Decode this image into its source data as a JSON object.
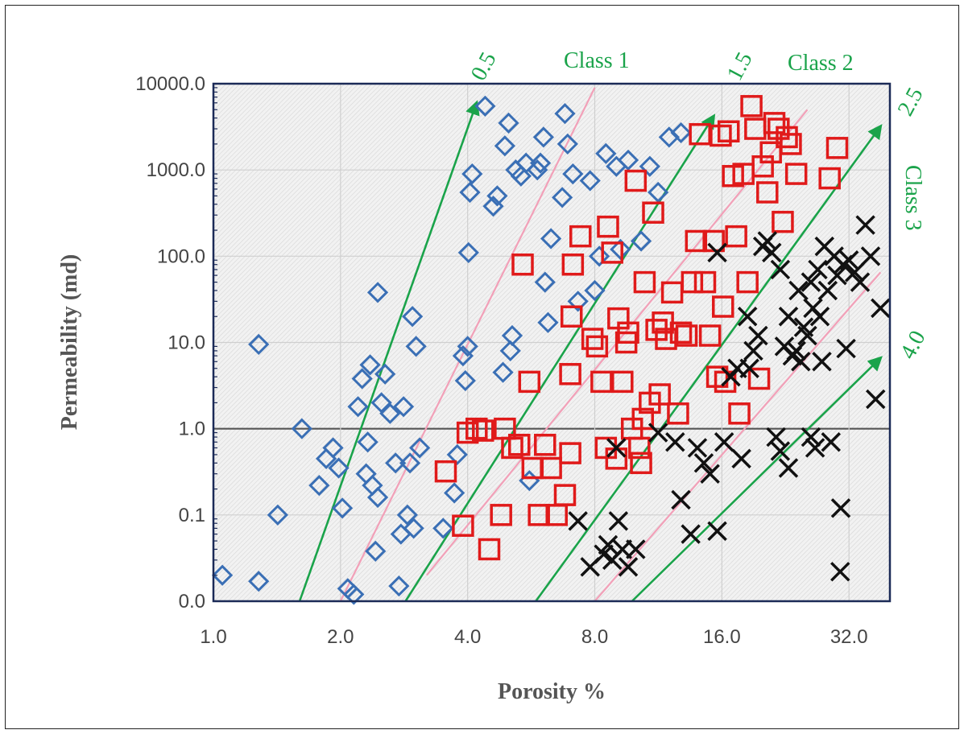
{
  "chart_data": {
    "type": "scatter",
    "xlabel": "Porosity %",
    "ylabel": "Permeability (md)",
    "x_scale": "log2",
    "y_scale": "log10",
    "xlim": [
      1.0,
      40.0
    ],
    "ylim": [
      0.01,
      10000.0
    ],
    "x_ticks": [
      1.0,
      2.0,
      4.0,
      8.0,
      16.0,
      32.0
    ],
    "x_tick_labels": [
      "1.0",
      "2.0",
      "4.0",
      "8.0",
      "16.0",
      "32.0"
    ],
    "y_ticks": [
      0.01,
      0.1,
      1.0,
      10.0,
      100.0,
      1000.0,
      10000.0
    ],
    "y_tick_labels": [
      "0.0",
      "0.1",
      "1.0",
      "10.0",
      "100.0",
      "1000.0",
      "10000.0"
    ],
    "grid": true,
    "reference_line_y": 1.0,
    "colors": {
      "diamond": "#3a6fb5",
      "square": "#e01a1a",
      "cross": "#111111",
      "green_line": "#1aa34a",
      "pink_line": "#f2a0b8"
    },
    "series": [
      {
        "marker": "diamond",
        "points": [
          [
            1.05,
            0.02
          ],
          [
            1.28,
            0.017
          ],
          [
            1.28,
            9.5
          ],
          [
            1.42,
            0.1
          ],
          [
            1.62,
            1.0
          ],
          [
            1.78,
            0.22
          ],
          [
            1.85,
            0.45
          ],
          [
            1.92,
            0.6
          ],
          [
            1.98,
            0.35
          ],
          [
            2.02,
            0.12
          ],
          [
            2.08,
            0.014
          ],
          [
            2.15,
            0.012
          ],
          [
            2.2,
            1.8
          ],
          [
            2.25,
            3.8
          ],
          [
            2.3,
            0.3
          ],
          [
            2.32,
            0.7
          ],
          [
            2.35,
            5.5
          ],
          [
            2.38,
            0.22
          ],
          [
            2.42,
            0.038
          ],
          [
            2.45,
            0.16
          ],
          [
            2.5,
            2.0
          ],
          [
            2.55,
            4.3
          ],
          [
            2.62,
            1.5
          ],
          [
            2.7,
            0.4
          ],
          [
            2.75,
            0.015
          ],
          [
            2.78,
            0.06
          ],
          [
            2.82,
            1.8
          ],
          [
            2.88,
            0.1
          ],
          [
            2.92,
            0.4
          ],
          [
            2.98,
            0.07
          ],
          [
            3.02,
            9.0
          ],
          [
            2.96,
            20.0
          ],
          [
            2.45,
            38.0
          ],
          [
            3.08,
            0.6
          ],
          [
            3.5,
            0.07
          ],
          [
            3.72,
            0.18
          ],
          [
            3.78,
            0.5
          ],
          [
            3.9,
            7.0
          ],
          [
            3.95,
            3.6
          ],
          [
            4.0,
            9.0
          ],
          [
            4.02,
            110.0
          ],
          [
            4.05,
            550.0
          ],
          [
            4.1,
            900.0
          ],
          [
            4.4,
            5500.0
          ],
          [
            4.6,
            380.0
          ],
          [
            4.7,
            500.0
          ],
          [
            4.85,
            4.5
          ],
          [
            4.9,
            1900.0
          ],
          [
            5.0,
            3500.0
          ],
          [
            5.05,
            8.0
          ],
          [
            5.1,
            12.0
          ],
          [
            5.2,
            1000.0
          ],
          [
            5.35,
            850.0
          ],
          [
            5.5,
            1200.0
          ],
          [
            5.6,
            0.25
          ],
          [
            5.85,
            1000.0
          ],
          [
            5.95,
            1200.0
          ],
          [
            6.05,
            2400.0
          ],
          [
            6.1,
            50.0
          ],
          [
            6.2,
            17.0
          ],
          [
            6.3,
            160.0
          ],
          [
            6.7,
            480.0
          ],
          [
            6.8,
            4500.0
          ],
          [
            6.9,
            2000.0
          ],
          [
            7.1,
            900.0
          ],
          [
            7.3,
            30.0
          ],
          [
            7.8,
            750.0
          ],
          [
            8.0,
            40.0
          ],
          [
            8.2,
            100.0
          ],
          [
            8.5,
            1550.0
          ],
          [
            9.0,
            1100.0
          ],
          [
            9.2,
            120.0
          ],
          [
            9.6,
            1300.0
          ],
          [
            10.3,
            150.0
          ],
          [
            10.8,
            1100.0
          ],
          [
            11.3,
            550.0
          ],
          [
            12.0,
            2400.0
          ],
          [
            12.8,
            2700.0
          ]
        ]
      },
      {
        "marker": "square",
        "points": [
          [
            3.55,
            0.32
          ],
          [
            3.9,
            0.075
          ],
          [
            4.0,
            0.9
          ],
          [
            4.2,
            1.0
          ],
          [
            4.35,
            0.95
          ],
          [
            4.5,
            0.04
          ],
          [
            4.8,
            0.1
          ],
          [
            4.9,
            1.0
          ],
          [
            5.1,
            0.6
          ],
          [
            5.3,
            0.65
          ],
          [
            5.4,
            80.0
          ],
          [
            5.6,
            3.5
          ],
          [
            5.7,
            0.35
          ],
          [
            5.9,
            0.1
          ],
          [
            6.1,
            0.65
          ],
          [
            6.3,
            0.35
          ],
          [
            6.5,
            0.1
          ],
          [
            6.8,
            0.17
          ],
          [
            7.0,
            0.52
          ],
          [
            7.0,
            4.3
          ],
          [
            7.05,
            20.0
          ],
          [
            7.1,
            80.0
          ],
          [
            7.4,
            170.0
          ],
          [
            7.9,
            11.0
          ],
          [
            8.1,
            9.0
          ],
          [
            8.3,
            3.5
          ],
          [
            8.5,
            0.6
          ],
          [
            8.6,
            220.0
          ],
          [
            8.8,
            110.0
          ],
          [
            9.0,
            0.45
          ],
          [
            9.1,
            19.0
          ],
          [
            9.3,
            3.5
          ],
          [
            9.5,
            10.0
          ],
          [
            9.6,
            13.0
          ],
          [
            9.8,
            1.0
          ],
          [
            10.0,
            750.0
          ],
          [
            10.2,
            0.6
          ],
          [
            10.3,
            0.4
          ],
          [
            10.4,
            1.3
          ],
          [
            10.5,
            50.0
          ],
          [
            10.8,
            2.0
          ],
          [
            11.0,
            320.0
          ],
          [
            11.2,
            14.0
          ],
          [
            11.4,
            2.5
          ],
          [
            11.6,
            17.0
          ],
          [
            11.8,
            11.0
          ],
          [
            12.2,
            38.0
          ],
          [
            12.6,
            1.5
          ],
          [
            12.8,
            13.0
          ],
          [
            13.2,
            12.0
          ],
          [
            13.6,
            50.0
          ],
          [
            13.9,
            150.0
          ],
          [
            14.2,
            2600.0
          ],
          [
            14.6,
            50.0
          ],
          [
            15.0,
            12.0
          ],
          [
            15.3,
            150.0
          ],
          [
            15.6,
            4.0
          ],
          [
            15.9,
            2500.0
          ],
          [
            16.1,
            26.0
          ],
          [
            16.3,
            3.5
          ],
          [
            16.6,
            2800.0
          ],
          [
            17.0,
            850.0
          ],
          [
            17.3,
            170.0
          ],
          [
            17.6,
            1.5
          ],
          [
            18.0,
            900.0
          ],
          [
            18.4,
            50.0
          ],
          [
            18.8,
            5500.0
          ],
          [
            19.2,
            3000.0
          ],
          [
            19.6,
            3.8
          ],
          [
            20.0,
            1100.0
          ],
          [
            20.5,
            550.0
          ],
          [
            20.9,
            1600.0
          ],
          [
            21.3,
            3500.0
          ],
          [
            21.8,
            3000.0
          ],
          [
            22.3,
            250.0
          ],
          [
            22.8,
            2400.0
          ],
          [
            23.3,
            2000.0
          ],
          [
            24.0,
            900.0
          ],
          [
            30.0,
            1800.0
          ],
          [
            28.8,
            800.0
          ]
        ]
      },
      {
        "marker": "cross",
        "points": [
          [
            7.3,
            0.085
          ],
          [
            7.8,
            0.025
          ],
          [
            8.4,
            0.035
          ],
          [
            8.6,
            0.045
          ],
          [
            8.8,
            0.03
          ],
          [
            9.0,
            0.6
          ],
          [
            9.1,
            0.085
          ],
          [
            9.3,
            0.04
          ],
          [
            9.6,
            0.025
          ],
          [
            10.0,
            0.04
          ],
          [
            11.3,
            0.9
          ],
          [
            12.4,
            0.7
          ],
          [
            12.8,
            0.15
          ],
          [
            13.5,
            0.06
          ],
          [
            14.0,
            0.6
          ],
          [
            14.5,
            0.4
          ],
          [
            15.0,
            0.3
          ],
          [
            15.6,
            0.065
          ],
          [
            15.6,
            110.0
          ],
          [
            16.2,
            0.7
          ],
          [
            16.8,
            4.0
          ],
          [
            17.4,
            5.0
          ],
          [
            17.8,
            0.45
          ],
          [
            18.4,
            20.0
          ],
          [
            18.6,
            5.0
          ],
          [
            19.0,
            8.0
          ],
          [
            19.5,
            12.0
          ],
          [
            20.0,
            130.0
          ],
          [
            20.5,
            150.0
          ],
          [
            21.0,
            110.0
          ],
          [
            21.5,
            0.8
          ],
          [
            22.0,
            0.55
          ],
          [
            22.5,
            9.0
          ],
          [
            23.0,
            0.35
          ],
          [
            23.5,
            7.0
          ],
          [
            24.0,
            8.0
          ],
          [
            24.3,
            40.0
          ],
          [
            24.6,
            6.0
          ],
          [
            25.0,
            15.0
          ],
          [
            25.5,
            12.0
          ],
          [
            26.0,
            0.8
          ],
          [
            26.3,
            25.0
          ],
          [
            26.6,
            0.6
          ],
          [
            27.0,
            70.0
          ],
          [
            27.3,
            20.0
          ],
          [
            27.6,
            6.0
          ],
          [
            28.0,
            130.0
          ],
          [
            28.5,
            40.0
          ],
          [
            29.0,
            0.7
          ],
          [
            29.5,
            100.0
          ],
          [
            30.0,
            60.0
          ],
          [
            30.5,
            0.022
          ],
          [
            30.6,
            0.12
          ],
          [
            31.0,
            80.0
          ],
          [
            31.5,
            8.5
          ],
          [
            32.0,
            90.0
          ],
          [
            33.0,
            65.0
          ],
          [
            34.0,
            50.0
          ],
          [
            35.0,
            230.0
          ],
          [
            36.0,
            100.0
          ],
          [
            37.0,
            2.2
          ],
          [
            38.0,
            25.0
          ],
          [
            22.0,
            70.0
          ],
          [
            26.0,
            50.0
          ],
          [
            23.0,
            20.0
          ]
        ]
      }
    ],
    "reference_lines": [
      {
        "label": "0.5",
        "color": "green",
        "arrow": true,
        "from": [
          1.6,
          0.01
        ],
        "to": [
          4.2,
          6000
        ]
      },
      {
        "label": "1.5",
        "color": "green",
        "arrow": true,
        "from": [
          2.85,
          0.01
        ],
        "to": [
          15.3,
          4200
        ]
      },
      {
        "label": "2.5",
        "color": "green",
        "arrow": true,
        "from": [
          5.8,
          0.01
        ],
        "to": [
          38.0,
          3200
        ]
      },
      {
        "label": "4.0",
        "color": "green",
        "arrow": true,
        "from": [
          9.8,
          0.01
        ],
        "to": [
          38.0,
          6.6
        ]
      },
      {
        "label": "",
        "color": "pink",
        "arrow": false,
        "from": [
          2.0,
          0.01
        ],
        "to": [
          8.0,
          9000
        ]
      },
      {
        "label": "",
        "color": "pink",
        "arrow": false,
        "from": [
          3.2,
          0.02
        ],
        "to": [
          25.5,
          5000
        ]
      },
      {
        "label": "",
        "color": "pink",
        "arrow": false,
        "from": [
          8.0,
          0.01
        ],
        "to": [
          38.0,
          65
        ]
      }
    ],
    "annotations": [
      "Class 1",
      "Class 2",
      "Class 3"
    ]
  }
}
